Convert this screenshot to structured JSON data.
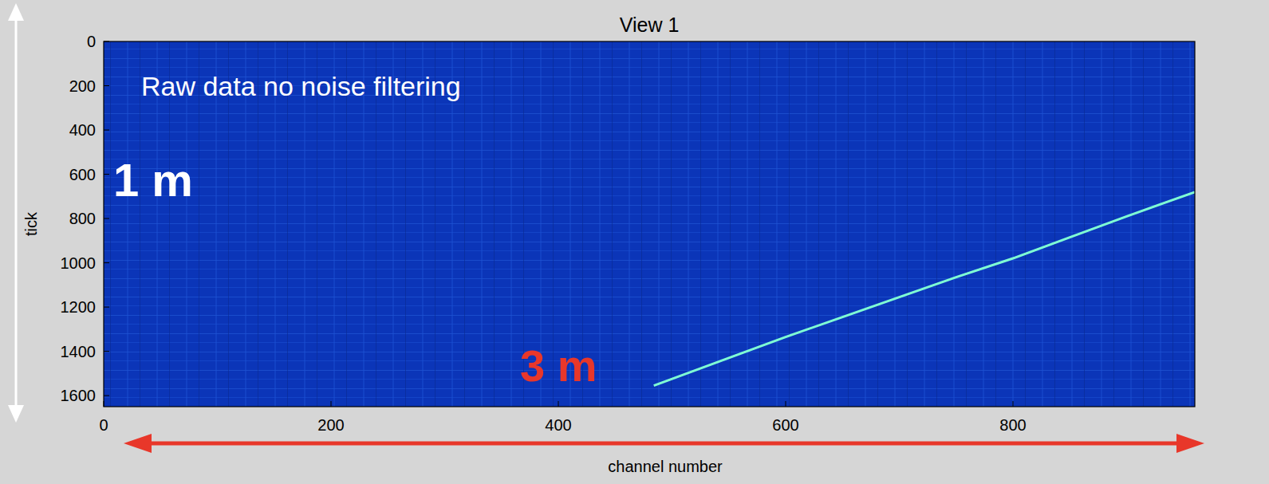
{
  "chart_data": {
    "type": "line",
    "title": "View 1",
    "x_label": "channel number",
    "y_label": "tick",
    "xlim": [
      0,
      960
    ],
    "ylim": [
      0,
      1650
    ],
    "xticks": [
      0,
      200,
      400,
      600,
      800
    ],
    "yticks": [
      0,
      200,
      400,
      600,
      800,
      1000,
      1200,
      1400,
      1600
    ],
    "x": [
      484,
      550,
      600,
      650,
      700,
      750,
      800,
      850,
      900,
      960
    ],
    "values": [
      1555,
      1430,
      1335,
      1245,
      1155,
      1065,
      980,
      885,
      790,
      680
    ],
    "color": "#7fffd4",
    "annotations": [
      "Raw data no noise filtering",
      "1 m",
      "3 m"
    ]
  }
}
